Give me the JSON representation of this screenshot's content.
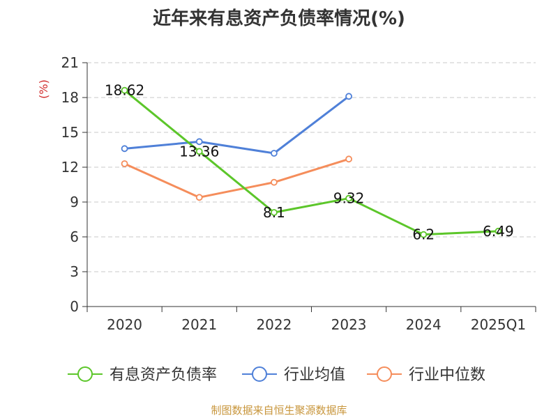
{
  "title": "近年来有息资产负债率情况(%)",
  "source": "制图数据来自恒生聚源数据库",
  "colors": {
    "company": "#5cc62a",
    "industry_avg": "#4f80d8",
    "industry_median": "#f58d5b"
  },
  "chart_data": {
    "type": "line",
    "title": "近年来有息资产负债率情况(%)",
    "ylabel": "(%)",
    "xlabel": "",
    "ylim": [
      0,
      21
    ],
    "yticks": [
      0,
      3,
      6,
      9,
      12,
      15,
      18,
      21
    ],
    "categories": [
      "2020",
      "2021",
      "2022",
      "2023",
      "2024",
      "2025Q1"
    ],
    "grid": true,
    "legend": "bottom",
    "series": [
      {
        "name": "有息资产负债率",
        "color": "#5cc62a",
        "values": [
          18.62,
          13.36,
          8.1,
          9.32,
          6.2,
          6.49
        ],
        "labels": [
          "18.62",
          "13.36",
          "8.1",
          "9.32",
          "6.2",
          "6.49"
        ]
      },
      {
        "name": "行业均值",
        "color": "#4f80d8",
        "values": [
          13.6,
          14.2,
          13.2,
          18.1,
          null,
          null
        ]
      },
      {
        "name": "行业中位数",
        "color": "#f58d5b",
        "values": [
          12.3,
          9.4,
          10.7,
          12.7,
          null,
          null
        ]
      }
    ]
  }
}
